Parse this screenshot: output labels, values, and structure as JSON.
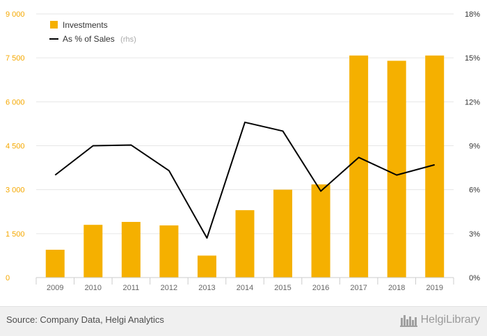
{
  "chart_data": {
    "type": "bar",
    "categories": [
      "2009",
      "2010",
      "2011",
      "2012",
      "2013",
      "2014",
      "2015",
      "2016",
      "2017",
      "2018",
      "2019"
    ],
    "series": [
      {
        "name": "Investments",
        "type": "bar",
        "axis": "left",
        "color": "#f5b000",
        "values": [
          950,
          1800,
          1900,
          1780,
          750,
          2300,
          3000,
          3180,
          7580,
          7400,
          7580
        ]
      },
      {
        "name": "As % of Sales",
        "name_suffix": "(rhs)",
        "type": "line",
        "axis": "right",
        "color": "#000000",
        "values": [
          7.0,
          9.0,
          9.05,
          7.3,
          2.7,
          10.6,
          10.0,
          5.9,
          8.2,
          7.0,
          7.7
        ]
      }
    ],
    "y_left": {
      "range": [
        0,
        9000
      ],
      "ticks": [
        0,
        1500,
        3000,
        4500,
        6000,
        7500,
        9000
      ],
      "tick_labels": [
        "0",
        "1 500",
        "3 000",
        "4 500",
        "6 000",
        "7 500",
        "9 000"
      ],
      "color": "#f5a800"
    },
    "y_right": {
      "range": [
        0,
        18
      ],
      "ticks": [
        0,
        3,
        6,
        9,
        12,
        15,
        18
      ],
      "tick_labels": [
        "0%",
        "3%",
        "6%",
        "9%",
        "12%",
        "15%",
        "18%"
      ]
    },
    "grid": true,
    "legend_position": "top-left"
  },
  "footer": {
    "source": "Source: Company Data, Helgi Analytics",
    "logo_text": "HelgiLibrary"
  }
}
